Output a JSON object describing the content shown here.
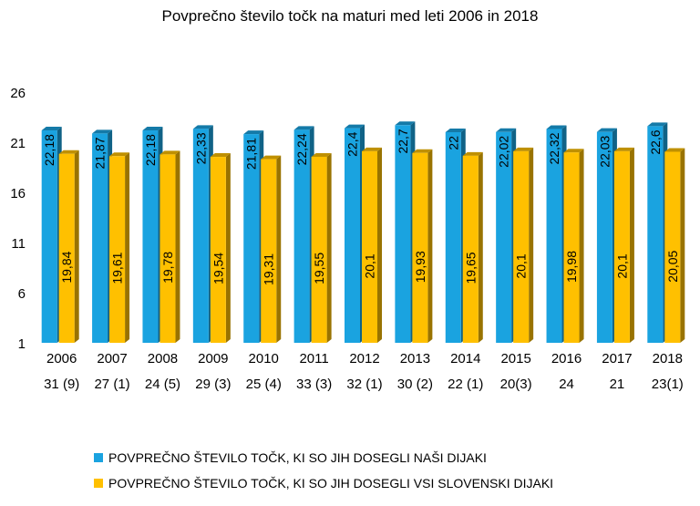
{
  "chart_data": {
    "type": "bar",
    "title": "Povprečno število točk na maturi med leti 2006 in 2018",
    "categories": [
      "2006",
      "2007",
      "2008",
      "2009",
      "2010",
      "2011",
      "2012",
      "2013",
      "2014",
      "2015",
      "2016",
      "2017",
      "2018"
    ],
    "subcategories": [
      "31 (9)",
      "27 (1)",
      "24 (5)",
      "29 (3)",
      "25 (4)",
      "33 (3)",
      "32 (1)",
      "30 (2)",
      "22 (1)",
      "20(3)",
      "24",
      "21",
      "23(1)"
    ],
    "series": [
      {
        "name": "POVPREČNO ŠTEVILO TOČK, KI SO JIH DOSEGLI NAŠI DIJAKI",
        "color": "#1aa3e0",
        "values": [
          22.18,
          21.87,
          22.18,
          22.33,
          21.81,
          22.24,
          22.4,
          22.7,
          22,
          22.02,
          22.32,
          22.03,
          22.6
        ],
        "labels": [
          "22,18",
          "21,87",
          "22,18",
          "22,33",
          "21,81",
          "22,24",
          "22,4",
          "22,7",
          "22",
          "22,02",
          "22,32",
          "22,03",
          "22,6"
        ]
      },
      {
        "name": "POVPREČNO ŠTEVILO TOČK, KI SO JIH DOSEGLI VSI SLOVENSKI DIJAKI",
        "color": "#ffc000",
        "values": [
          19.84,
          19.61,
          19.78,
          19.54,
          19.31,
          19.55,
          20.1,
          19.93,
          19.65,
          20.1,
          19.98,
          20.1,
          20.05
        ],
        "labels": [
          "19,84",
          "19,61",
          "19,78",
          "19,54",
          "19,31",
          "19,55",
          "20,1",
          "19,93",
          "19,65",
          "20,1",
          "19,98",
          "20,1",
          "20,05"
        ]
      }
    ],
    "yticks": [
      1,
      6,
      11,
      16,
      21,
      26
    ],
    "ylim": [
      1,
      26
    ],
    "grid": false,
    "legend_position": "bottom-left"
  }
}
